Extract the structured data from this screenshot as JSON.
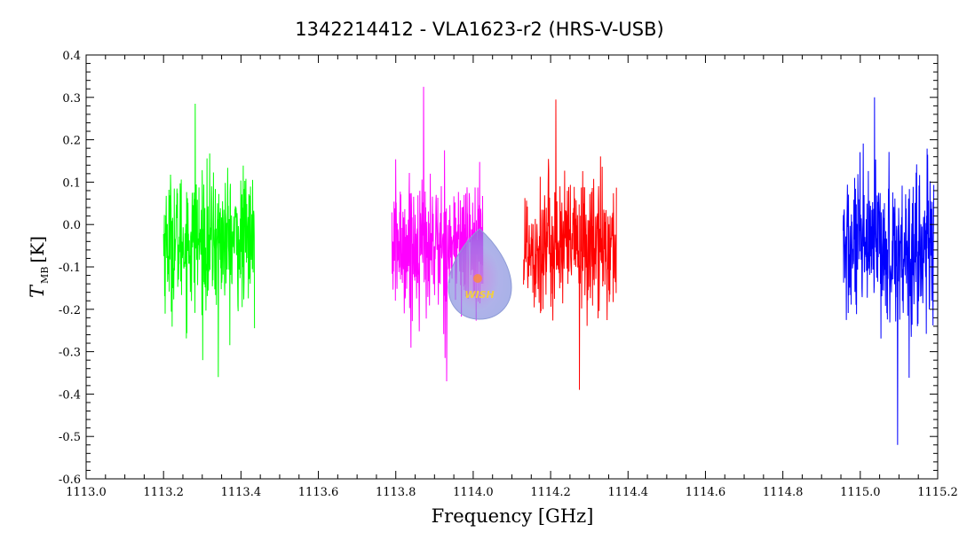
{
  "chart_data": {
    "type": "line",
    "title": "1342214412 - VLA1623-r2 (HRS-V-USB)",
    "xlabel": "Frequency [GHz]",
    "ylabel_main": "T",
    "ylabel_sub": "MB",
    "ylabel_unit": "[K]",
    "xlim": [
      1113.0,
      1115.2
    ],
    "ylim": [
      -0.6,
      0.4
    ],
    "x_ticks": [
      1113.0,
      1113.2,
      1113.4,
      1113.6,
      1113.8,
      1114.0,
      1114.2,
      1114.4,
      1114.6,
      1114.8,
      1115.0,
      1115.2
    ],
    "x_tick_labels": [
      "1113.0",
      "1113.2",
      "1113.4",
      "1113.6",
      "1113.8",
      "1114.0",
      "1114.2",
      "1114.4",
      "1114.6",
      "1114.8",
      "1115.0",
      "1115.2"
    ],
    "y_ticks": [
      -0.6,
      -0.5,
      -0.4,
      -0.3,
      -0.2,
      -0.1,
      0.0,
      0.1,
      0.2,
      0.3,
      0.4
    ],
    "y_tick_labels": [
      "-0.6",
      "-0.5",
      "-0.4",
      "-0.3",
      "-0.2",
      "-0.1",
      "0.0",
      "0.1",
      "0.2",
      "0.3",
      "0.4"
    ],
    "grid": false,
    "legend": "none",
    "series": [
      {
        "color": "#00ff00",
        "x_start": 1113.2,
        "x_end": 1113.435,
        "y_mean": -0.04,
        "y_noise": 0.08,
        "y_min": -0.36,
        "y_max": 0.285
      },
      {
        "color": "#ff00ff",
        "x_start": 1113.79,
        "x_end": 1114.025,
        "y_mean": -0.05,
        "y_noise": 0.08,
        "y_min": -0.37,
        "y_max": 0.325
      },
      {
        "color": "#ff0000",
        "x_start": 1114.13,
        "x_end": 1114.37,
        "y_mean": -0.05,
        "y_noise": 0.08,
        "y_min": -0.39,
        "y_max": 0.295
      },
      {
        "color": "#0000ff",
        "x_start": 1114.955,
        "x_end": 1115.19,
        "y_mean": -0.06,
        "y_noise": 0.09,
        "y_min": -0.52,
        "y_max": 0.3
      }
    ]
  },
  "watermark": {
    "text": "WISH",
    "color": "#6f7fd8"
  }
}
